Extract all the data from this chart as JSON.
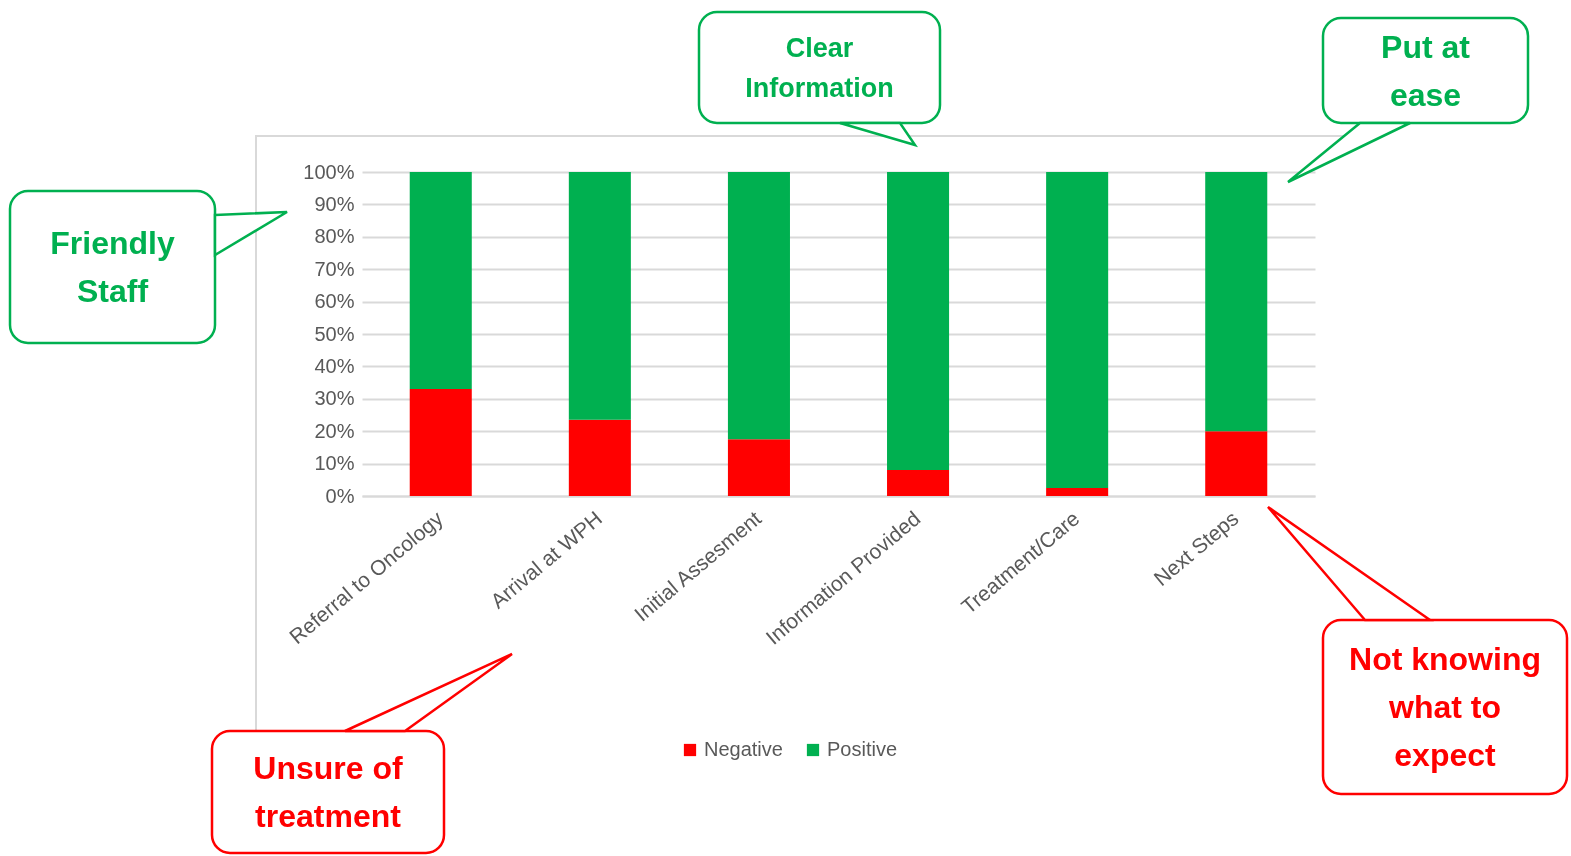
{
  "chart_data": {
    "type": "bar",
    "stacked": true,
    "categories": [
      "Referral to Oncology",
      "Arrival at WPH",
      "Initial Assesment",
      "Information Provided",
      "Treatment/Care",
      "Next Steps"
    ],
    "series": [
      {
        "name": "Negative",
        "color": "#ff0000",
        "values": [
          33,
          23.5,
          17.5,
          8,
          2.5,
          20
        ]
      },
      {
        "name": "Positive",
        "color": "#00b050",
        "values": [
          67,
          76.5,
          82.5,
          92,
          97.5,
          80
        ]
      }
    ],
    "ylim": [
      0,
      100
    ],
    "yticks": [
      {
        "value": 0,
        "label": "0%"
      },
      {
        "value": 10,
        "label": "10%"
      },
      {
        "value": 20,
        "label": "20%"
      },
      {
        "value": 30,
        "label": "30%"
      },
      {
        "value": 40,
        "label": "40%"
      },
      {
        "value": 50,
        "label": "50%"
      },
      {
        "value": 60,
        "label": "60%"
      },
      {
        "value": 70,
        "label": "70%"
      },
      {
        "value": 80,
        "label": "80%"
      },
      {
        "value": 90,
        "label": "90%"
      },
      {
        "value": 100,
        "label": "100%"
      }
    ],
    "grid": "y",
    "legend": "bottom",
    "annotations": [
      "Friendly Staff",
      "Clear Information",
      "Put at ease",
      "Unsure of treatment",
      "Not knowing what to expect"
    ]
  }
}
